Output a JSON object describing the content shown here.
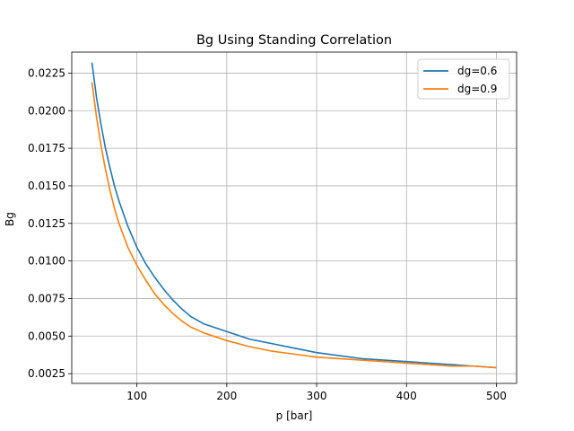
{
  "chart_data": {
    "type": "line",
    "title": "Bg Using Standing Correlation",
    "xlabel": "p [bar]",
    "ylabel": "Bg",
    "xlim": [
      27.5,
      522.5
    ],
    "ylim": [
      0.00185,
      0.0239
    ],
    "xticks": [
      100,
      200,
      300,
      400,
      500
    ],
    "xtick_labels": [
      "100",
      "200",
      "300",
      "400",
      "500"
    ],
    "yticks": [
      0.0025,
      0.005,
      0.0075,
      0.01,
      0.0125,
      0.015,
      0.0175,
      0.02,
      0.0225
    ],
    "ytick_labels": [
      "0.0025",
      "0.0050",
      "0.0075",
      "0.0100",
      "0.0125",
      "0.0150",
      "0.0175",
      "0.0200",
      "0.0225"
    ],
    "grid": true,
    "legend_position": "top-right",
    "series": [
      {
        "name": "dg=0.6",
        "color": "#1f77b4",
        "x": [
          50,
          55,
          60,
          65,
          70,
          75,
          80,
          90,
          100,
          110,
          120,
          130,
          140,
          150,
          160,
          175,
          200,
          225,
          250,
          275,
          300,
          325,
          350,
          375,
          400,
          425,
          450,
          475,
          500
        ],
        "y": [
          0.0232,
          0.0209,
          0.0191,
          0.0175,
          0.0162,
          0.015,
          0.014,
          0.0123,
          0.0109,
          0.0098,
          0.0089,
          0.0081,
          0.0074,
          0.0068,
          0.0063,
          0.0058,
          0.0053,
          0.0048,
          0.0045,
          0.0042,
          0.0039,
          0.0037,
          0.0035,
          0.0034,
          0.0033,
          0.0032,
          0.0031,
          0.003,
          0.0029
        ]
      },
      {
        "name": "dg=0.9",
        "color": "#ff7f0e",
        "x": [
          50,
          55,
          60,
          65,
          70,
          75,
          80,
          90,
          100,
          110,
          120,
          130,
          140,
          150,
          160,
          175,
          200,
          225,
          250,
          275,
          300,
          325,
          350,
          375,
          400,
          425,
          450,
          475,
          500
        ],
        "y": [
          0.0219,
          0.0196,
          0.0177,
          0.0161,
          0.0147,
          0.0135,
          0.0125,
          0.0109,
          0.0097,
          0.0087,
          0.0078,
          0.0071,
          0.0065,
          0.006,
          0.0056,
          0.0052,
          0.0047,
          0.0043,
          0.004,
          0.0038,
          0.0036,
          0.0035,
          0.0034,
          0.0033,
          0.0032,
          0.0031,
          0.003,
          0.003,
          0.0029
        ]
      }
    ]
  }
}
